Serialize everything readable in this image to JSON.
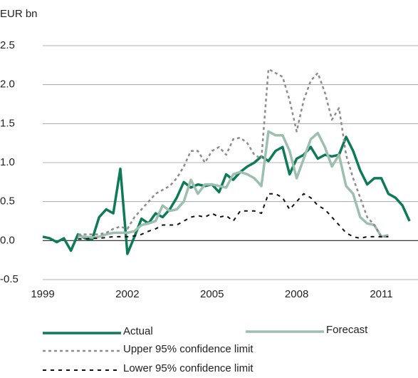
{
  "chart_data": {
    "type": "line",
    "y_label": "EUR bn",
    "x": [
      1999,
      1999.25,
      1999.5,
      1999.75,
      2000,
      2000.25,
      2000.5,
      2000.75,
      2001,
      2001.25,
      2001.5,
      2001.75,
      2002,
      2002.25,
      2002.5,
      2002.75,
      2003,
      2003.25,
      2003.5,
      2003.75,
      2004,
      2004.25,
      2004.5,
      2004.75,
      2005,
      2005.25,
      2005.5,
      2005.75,
      2006,
      2006.25,
      2006.5,
      2006.75,
      2007,
      2007.25,
      2007.5,
      2007.75,
      2008,
      2008.25,
      2008.5,
      2008.75,
      2009,
      2009.25,
      2009.5,
      2009.75,
      2010,
      2010.25,
      2010.5,
      2010.75,
      2011,
      2011.25,
      2011.5,
      2011.75,
      2012
    ],
    "series": [
      {
        "name": "Actual",
        "color": "#0e7a58",
        "style": "solid",
        "values": [
          0.05,
          0.03,
          -0.02,
          0.03,
          -0.13,
          0.08,
          0.03,
          0.01,
          0.3,
          0.4,
          0.35,
          0.92,
          -0.17,
          0.05,
          0.28,
          0.22,
          0.35,
          0.3,
          0.4,
          0.55,
          0.75,
          0.68,
          0.72,
          0.7,
          0.72,
          0.62,
          0.85,
          0.78,
          0.88,
          0.95,
          1.0,
          1.08,
          1.02,
          1.15,
          1.2,
          0.85,
          1.05,
          1.1,
          1.2,
          1.05,
          1.1,
          1.08,
          1.1,
          1.33,
          1.15,
          0.9,
          0.72,
          0.8,
          0.8,
          0.6,
          0.55,
          0.45,
          0.25
        ]
      },
      {
        "name": "Forecast",
        "color": "#9dbfae",
        "style": "solid",
        "values": [
          null,
          null,
          null,
          null,
          null,
          0.05,
          0.05,
          0.04,
          0.05,
          0.08,
          0.1,
          0.1,
          0.1,
          0.12,
          0.2,
          0.22,
          0.25,
          0.45,
          0.38,
          0.4,
          0.5,
          0.78,
          0.6,
          0.72,
          0.72,
          0.7,
          0.68,
          0.85,
          0.88,
          0.85,
          0.8,
          0.7,
          1.4,
          1.35,
          1.35,
          1.15,
          0.8,
          1.05,
          1.3,
          1.38,
          1.2,
          0.95,
          1.1,
          0.7,
          0.6,
          0.3,
          0.22,
          0.2,
          0.05,
          0.07,
          null,
          null,
          null
        ]
      },
      {
        "name": "Upper 95% confidence limit",
        "color": "#8c8c8c",
        "style": "dotted",
        "values": [
          null,
          null,
          null,
          null,
          null,
          0.08,
          0.08,
          0.08,
          0.08,
          0.1,
          0.15,
          0.18,
          0.15,
          0.3,
          0.4,
          0.5,
          0.6,
          0.65,
          0.7,
          0.8,
          0.95,
          1.15,
          1.15,
          1.0,
          1.15,
          1.2,
          1.1,
          1.3,
          1.32,
          1.25,
          1.1,
          1.05,
          2.2,
          2.15,
          2.1,
          1.8,
          1.4,
          1.8,
          2.05,
          2.15,
          1.9,
          1.55,
          1.7,
          1.1,
          0.8,
          0.55,
          0.3,
          0.2,
          0.05,
          0.05,
          null,
          null,
          null
        ]
      },
      {
        "name": "Lower 95% confidence limit",
        "color": "#111111",
        "style": "dashed",
        "values": [
          null,
          null,
          null,
          null,
          null,
          0.02,
          0.02,
          0.03,
          0.03,
          0.04,
          0.05,
          0.05,
          0.05,
          0.06,
          0.08,
          0.12,
          0.15,
          0.2,
          0.2,
          0.2,
          0.25,
          0.3,
          0.32,
          0.3,
          0.35,
          0.3,
          0.32,
          0.25,
          0.38,
          0.38,
          0.38,
          0.35,
          0.6,
          0.6,
          0.55,
          0.4,
          0.5,
          0.6,
          0.55,
          0.45,
          0.4,
          0.3,
          0.2,
          0.1,
          0.05,
          0.03,
          0.05,
          0.05,
          0.05,
          0.05,
          null,
          null,
          null
        ]
      }
    ],
    "xlim": [
      1999,
      2012.3
    ],
    "xticks": [
      1999,
      2002,
      2005,
      2008,
      2011
    ],
    "ylim": [
      -0.5,
      2.5
    ],
    "yticks": [
      -0.5,
      {
        "value": 0,
        "label": "0.0"
      },
      0.5,
      {
        "value": 1,
        "label": "1.0"
      },
      1.5,
      {
        "value": 2,
        "label": "2.0"
      },
      2.5
    ],
    "grid": true
  }
}
